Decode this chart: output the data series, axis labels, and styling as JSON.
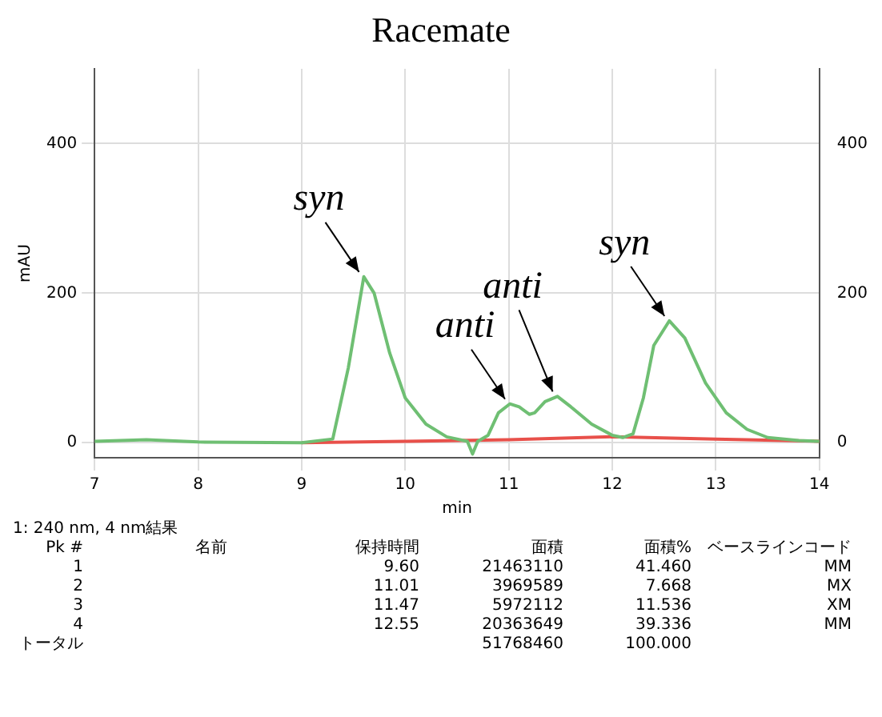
{
  "chart_data": {
    "type": "line",
    "title": "Racemate",
    "xlabel": "min",
    "ylabel": "mAU",
    "xlim": [
      7,
      14
    ],
    "xticks": [
      7,
      8,
      9,
      10,
      11,
      12,
      13,
      14
    ],
    "ylim": [
      -20,
      500
    ],
    "yticks": [
      0,
      200,
      400
    ],
    "y2lim": [
      -20,
      500
    ],
    "y2ticks": [
      0,
      200,
      400
    ],
    "grid": true,
    "legend": false,
    "marker": "none",
    "line_style": "solid",
    "series": [
      {
        "color": "#6fbf73",
        "x": [
          7,
          7.5,
          8,
          9,
          9.3,
          9.45,
          9.6,
          9.7,
          9.85,
          10,
          10.2,
          10.4,
          10.6,
          10.65,
          10.7,
          10.8,
          10.9,
          11.01,
          11.1,
          11.2,
          11.25,
          11.35,
          11.47,
          11.6,
          11.8,
          12,
          12.1,
          12.2,
          12.3,
          12.4,
          12.55,
          12.7,
          12.9,
          13.1,
          13.3,
          13.5,
          13.8,
          14
        ],
        "values": [
          2,
          4,
          1,
          0,
          5,
          100,
          222,
          200,
          120,
          60,
          25,
          8,
          2,
          -15,
          2,
          10,
          40,
          52,
          48,
          38,
          40,
          55,
          62,
          48,
          25,
          10,
          7,
          12,
          60,
          130,
          163,
          140,
          80,
          40,
          18,
          7,
          3,
          2
        ]
      },
      {
        "color": "#e8504a",
        "x": [
          9,
          10,
          11,
          12,
          13,
          14
        ],
        "values": [
          0,
          2,
          4,
          8,
          5,
          2
        ]
      }
    ],
    "annotations": [
      {
        "text": "syn",
        "x": 9.6,
        "y": 222
      },
      {
        "text": "anti",
        "x": 11.01,
        "y": 52
      },
      {
        "text": "anti",
        "x": 11.47,
        "y": 62
      },
      {
        "text": "syn",
        "x": 12.55,
        "y": 163
      },
      "1: 240 nm, 4 nm結果",
      "Pk #\t名前\t保持時間\t面積\t面積%\tベースラインコード",
      "1\t\t9.60\t21463110\t41.460\tMM",
      "2\t\t11.01\t3969589\t7.668\tMX",
      "3\t\t11.47\t5972112\t11.536\tXM",
      "4\t\t12.55\t20363649\t39.336\tMM",
      "トータル\t\t\t51768460\t100.000\t"
    ]
  }
}
